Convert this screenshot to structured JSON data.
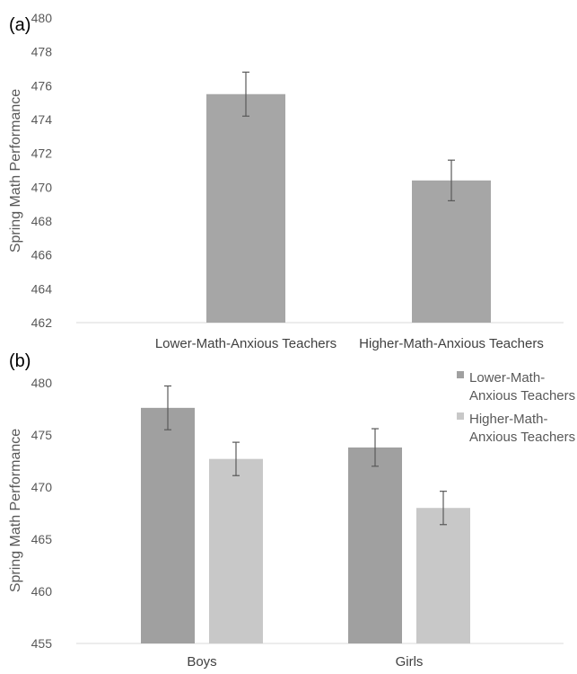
{
  "chart_data": [
    {
      "type": "bar",
      "panel_label": "(a)",
      "ylabel": "Spring Math Performance",
      "ylim": [
        462,
        480
      ],
      "yticks": [
        462,
        464,
        466,
        468,
        470,
        472,
        474,
        476,
        478,
        480
      ],
      "categories": [
        "Lower-Math-Anxious Teachers",
        "Higher-Math-Anxious Teachers"
      ],
      "series": [
        {
          "values": [
            475.5,
            470.4
          ],
          "error_low": [
            474.2,
            469.2
          ],
          "error_high": [
            476.8,
            471.6
          ],
          "color": "#a6a6a6"
        }
      ],
      "grid": false
    },
    {
      "type": "bar",
      "panel_label": "(b)",
      "ylabel": "Spring Math Performance",
      "ylim": [
        455,
        480
      ],
      "yticks": [
        455,
        460,
        465,
        470,
        475,
        480
      ],
      "categories": [
        "Boys",
        "Girls"
      ],
      "series": [
        {
          "name": "Lower-Math-Anxious Teachers",
          "legend_lines": [
            "Lower-Math-",
            "Anxious Teachers"
          ],
          "values": [
            477.6,
            473.8
          ],
          "error_low": [
            475.5,
            472.0
          ],
          "error_high": [
            479.7,
            475.6
          ],
          "color": "#a0a0a0"
        },
        {
          "name": "Higher-Math-Anxious Teachers",
          "legend_lines": [
            "Higher-Math-",
            "Anxious Teachers"
          ],
          "values": [
            472.7,
            468.0
          ],
          "error_low": [
            471.1,
            466.4
          ],
          "error_high": [
            474.3,
            469.6
          ],
          "color": "#c8c8c8"
        }
      ],
      "legend_position": "top-right",
      "grid": false
    }
  ]
}
